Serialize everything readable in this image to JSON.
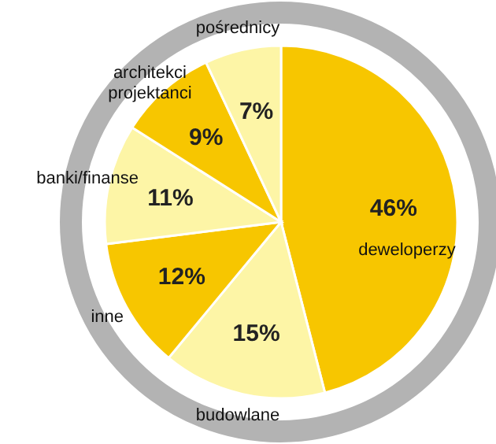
{
  "chart_data": {
    "type": "pie",
    "categories": [
      "deweloperzy",
      "budowlane",
      "inne",
      "banki/finanse",
      "architekci projektanci",
      "pośrednicy"
    ],
    "values": [
      46,
      15,
      12,
      11,
      9,
      7
    ],
    "value_labels": [
      "46%",
      "15%",
      "12%",
      "11%",
      "9%",
      "7%"
    ],
    "colors": [
      "#f7c600",
      "#fdf5a6",
      "#f7c600",
      "#fdf5a6",
      "#f7c600",
      "#fdf5a6"
    ]
  }
}
